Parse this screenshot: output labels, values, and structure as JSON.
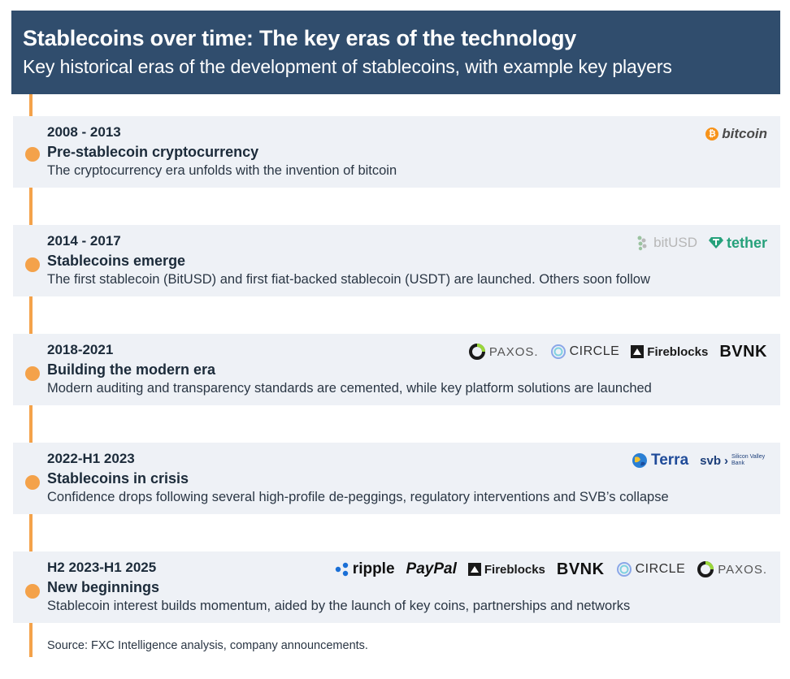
{
  "header": {
    "title": "Stablecoins over time: The key eras of the technology",
    "subtitle": "Key historical eras of the development of stablecoins, with example key players"
  },
  "eras": [
    {
      "years": "2008 - 2013",
      "name": "Pre-stablecoin cryptocurrency",
      "description": "The cryptocurrency era unfolds with the invention of bitcoin",
      "logos": [
        "bitcoin"
      ]
    },
    {
      "years": "2014 - 2017",
      "name": "Stablecoins emerge",
      "description": "The first stablecoin (BitUSD) and first fiat-backed stablecoin (USDT) are launched. Others soon follow",
      "logos": [
        "bitUSD",
        "tether"
      ]
    },
    {
      "years": "2018-2021",
      "name": "Building the modern era",
      "description": "Modern auditing and transparency standards are cemented, while key platform solutions are launched",
      "logos": [
        "PAXOS.",
        "CIRCLE",
        "Fireblocks",
        "BVNK"
      ]
    },
    {
      "years": "2022-H1 2023",
      "name": "Stablecoins in crisis",
      "description": "Confidence drops following several high-profile de-peggings, regulatory interventions and SVB’s collapse",
      "logos": [
        "Terra",
        "svb",
        "Silicon Valley Bank"
      ]
    },
    {
      "years": "H2 2023-H1 2025",
      "name": "New beginnings",
      "description": "Stablecoin interest builds momentum, aided by the launch of key coins, partnerships and networks",
      "logos": [
        "ripple",
        "PayPal",
        "Fireblocks",
        "BVNK",
        "CIRCLE",
        "PAXOS."
      ]
    }
  ],
  "source": "Source: FXC Intelligence analysis, company announcements.",
  "colors": {
    "header_bg": "#304d6d",
    "timeline": "#f4a24a",
    "card_bg": "#eef1f6"
  }
}
